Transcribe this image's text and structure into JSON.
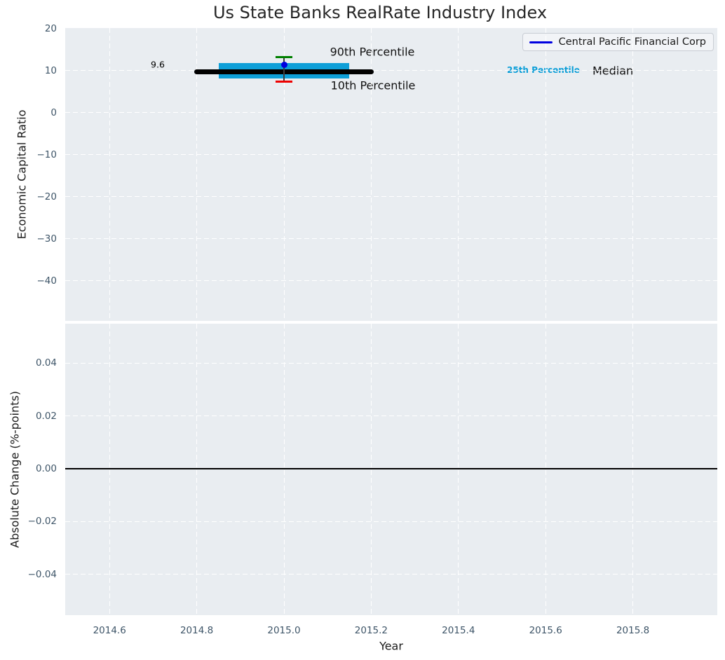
{
  "title": "Us State Banks RealRate Industry Index",
  "legend": {
    "label": "Central Pacific Financial Corp"
  },
  "colors": {
    "axes_background": "#e9edf1",
    "grid": "#ffffff",
    "tick_label": "#3d5467",
    "iqr_box": "#0e9fd8",
    "median_line": "#000000",
    "p90_cap": "#008000",
    "p10_cap": "#ee0000",
    "company_marker": "#0000e0",
    "errorbar_line": "#3c3c3c",
    "zero_line": "#000000"
  },
  "chart_data": [
    {
      "type": "errorbar",
      "title": "Us State Banks RealRate Industry Index",
      "ylabel": "Economic Capital Ratio",
      "ylim": [
        -49.6,
        20.1
      ],
      "xlim": [
        2014.5,
        2016.0
      ],
      "grid": "white-dashed",
      "legend_position": "upper right",
      "yticks": [
        {
          "v": 20,
          "label": "20"
        },
        {
          "v": 10,
          "label": "10"
        },
        {
          "v": 0,
          "label": "0"
        },
        {
          "v": -10,
          "label": "−10"
        },
        {
          "v": -20,
          "label": "−20"
        },
        {
          "v": -30,
          "label": "−30"
        },
        {
          "v": -40,
          "label": "−40"
        }
      ],
      "series": [
        {
          "name": "Central Pacific Financial Corp",
          "x": 2015.0,
          "y": 11.3,
          "marker": "circle",
          "color": "#0000e0"
        }
      ],
      "industry_distribution": {
        "year": 2015.0,
        "p10": 7.3,
        "p25": 8.1,
        "median": 9.6,
        "p75": 11.8,
        "p90": 13.2,
        "median_value_label": "9.6",
        "median_line_year_span": [
          2014.8,
          2015.2
        ],
        "iqr_box_year_span": [
          2014.85,
          2015.15
        ]
      },
      "annotations": {
        "p90": "90th Percentile",
        "p10": "10th Percentile",
        "p25": "25th Percentile",
        "median": "Median"
      }
    },
    {
      "type": "line",
      "ylabel": "Absolute Change (%-points)",
      "xlabel": "Year",
      "ylim": [
        -0.055,
        0.055
      ],
      "xlim": [
        2014.5,
        2016.0
      ],
      "grid": "white-dashed",
      "zero_line": 0.0,
      "yticks": [
        {
          "v": 0.04,
          "label": "0.04"
        },
        {
          "v": 0.02,
          "label": "0.02"
        },
        {
          "v": 0.0,
          "label": "0.00"
        },
        {
          "v": -0.02,
          "label": "−0.02"
        },
        {
          "v": -0.04,
          "label": "−0.04"
        }
      ],
      "xticks": [
        {
          "v": 2014.6,
          "label": "2014.6"
        },
        {
          "v": 2014.8,
          "label": "2014.8"
        },
        {
          "v": 2015.0,
          "label": "2015.0"
        },
        {
          "v": 2015.2,
          "label": "2015.2"
        },
        {
          "v": 2015.4,
          "label": "2015.4"
        },
        {
          "v": 2015.6,
          "label": "2015.6"
        },
        {
          "v": 2015.8,
          "label": "2015.8"
        }
      ],
      "series": []
    }
  ]
}
